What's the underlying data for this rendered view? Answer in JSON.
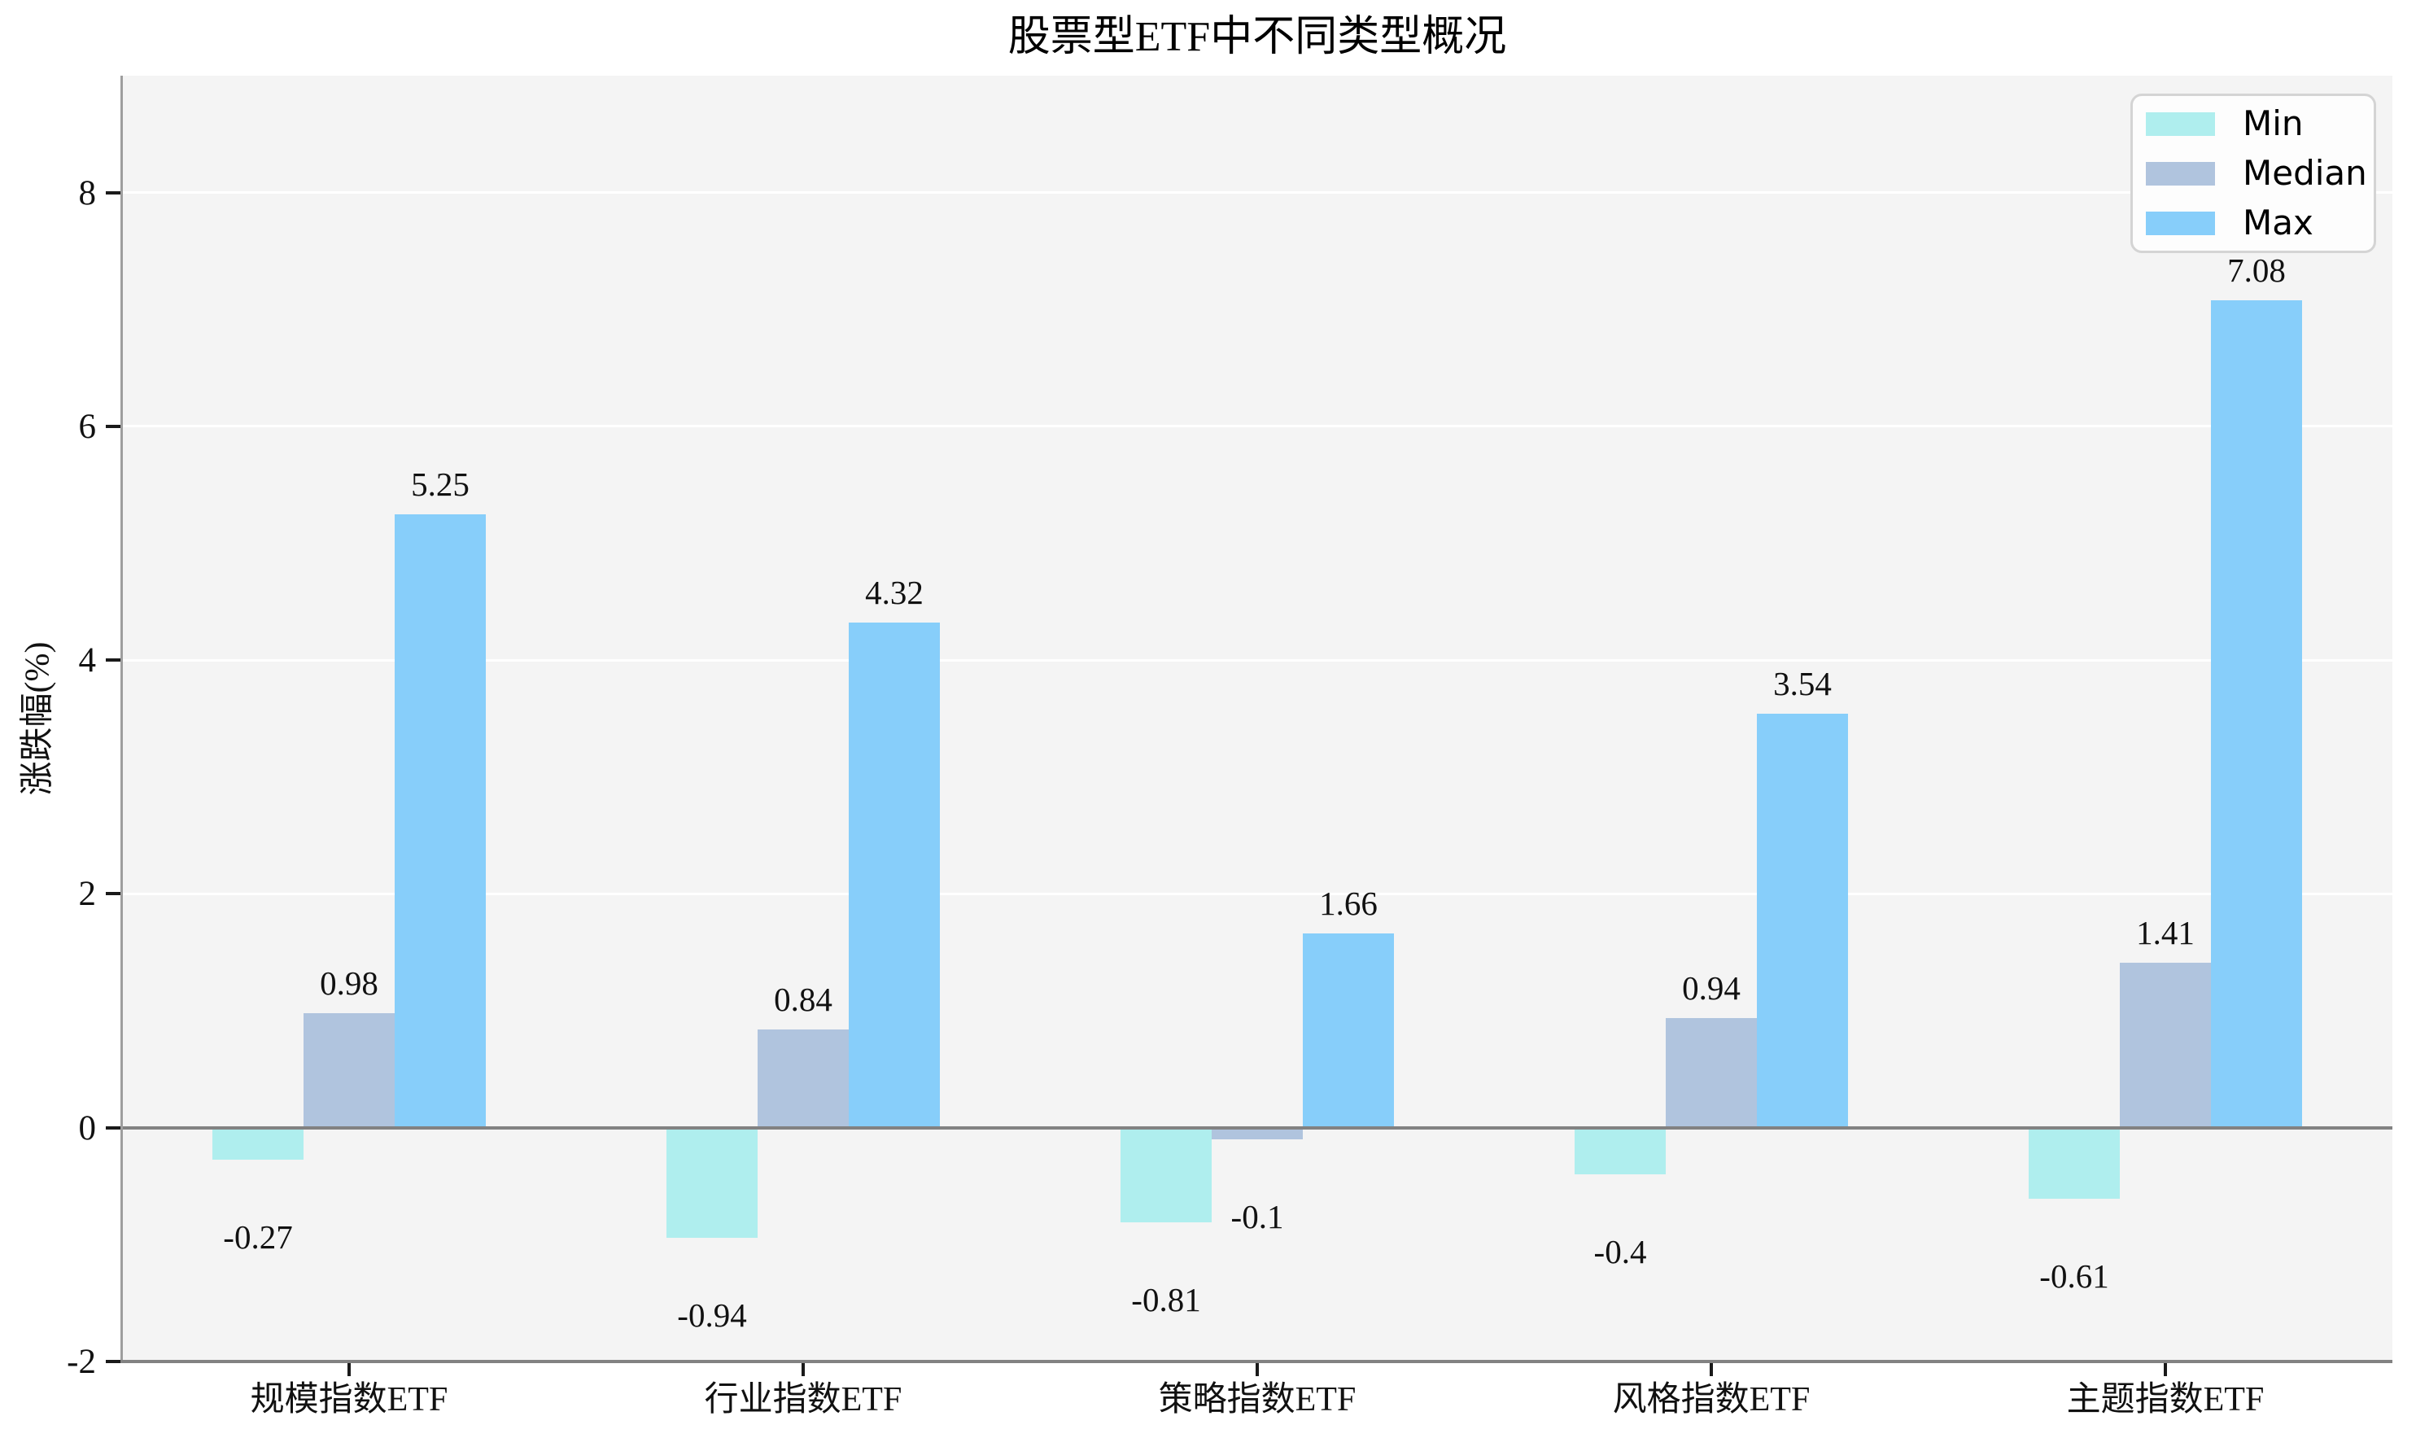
{
  "chart_data": {
    "type": "bar",
    "title": "股票型ETF中不同类型概况",
    "ylabel": "涨跌幅(%)",
    "categories": [
      "规模指数ETF",
      "行业指数ETF",
      "策略指数ETF",
      "风格指数ETF",
      "主题指数ETF"
    ],
    "series": [
      {
        "name": "Min",
        "color": "#AFEEEE",
        "values": [
          -0.27,
          -0.94,
          -0.81,
          -0.4,
          -0.61
        ],
        "labels": [
          "-0.27",
          "-0.94",
          "-0.81",
          "-0.4",
          "-0.61"
        ]
      },
      {
        "name": "Median",
        "color": "#B0C4DE",
        "values": [
          0.98,
          0.84,
          -0.1,
          0.94,
          1.41
        ],
        "labels": [
          "0.98",
          "0.84",
          "-0.1",
          "0.94",
          "1.41"
        ]
      },
      {
        "name": "Max",
        "color": "#87CEFA",
        "values": [
          5.25,
          4.32,
          1.66,
          3.54,
          7.08
        ],
        "labels": [
          "5.25",
          "4.32",
          "1.66",
          "3.54",
          "7.08"
        ]
      }
    ],
    "ylim": [
      -2,
      9
    ],
    "yticks": [
      8,
      6,
      4,
      2,
      0,
      -2
    ],
    "ytick_labels": [
      "8",
      "6",
      "4",
      "2",
      "0",
      "-2"
    ],
    "grid_values": [
      2,
      4,
      6,
      8
    ],
    "legend": {
      "position": "upper right",
      "labels": [
        "Min",
        "Median",
        "Max"
      ]
    },
    "colors": {
      "plot_bg": "#f4f4f4",
      "grid": "#ffffff",
      "zero_line": "#828282",
      "spine": "#9e9e9e",
      "tick": "#1a1a1a",
      "text": "#111111",
      "legend_border": "#d4d4d4",
      "legend_bg": "#fdfdfd"
    }
  }
}
